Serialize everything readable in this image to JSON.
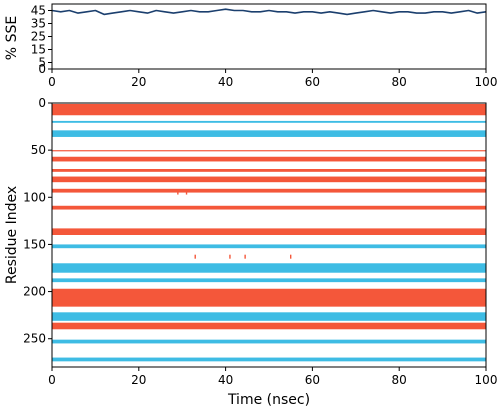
{
  "chart_data": [
    {
      "type": "line",
      "xlabel": "",
      "ylabel": "% SSE",
      "xlim": [
        0,
        100
      ],
      "ylim": [
        0,
        50
      ],
      "x_ticks": [
        "0",
        "20",
        "40",
        "60",
        "80",
        "100"
      ],
      "y_ticks": [
        "0",
        "5",
        "15",
        "25",
        "35",
        "45"
      ],
      "series": [
        {
          "color": "#1b3f6e",
          "x": [
            0,
            2,
            4,
            6,
            8,
            10,
            12,
            14,
            16,
            18,
            20,
            22,
            24,
            26,
            28,
            30,
            32,
            34,
            36,
            38,
            40,
            42,
            44,
            46,
            48,
            50,
            52,
            54,
            56,
            58,
            60,
            62,
            64,
            66,
            68,
            70,
            72,
            74,
            76,
            78,
            80,
            82,
            84,
            86,
            88,
            90,
            92,
            94,
            96,
            98,
            100
          ],
          "y": [
            45,
            44,
            45,
            43,
            44,
            45,
            42,
            43,
            44,
            45,
            44,
            43,
            45,
            44,
            43,
            44,
            45,
            44,
            44,
            45,
            46,
            45,
            45,
            44,
            44,
            45,
            44,
            44,
            43,
            44,
            44,
            43,
            44,
            43,
            42,
            43,
            44,
            45,
            44,
            43,
            44,
            44,
            43,
            43,
            44,
            44,
            43,
            44,
            45,
            43,
            44
          ]
        }
      ]
    },
    {
      "type": "heatmap",
      "xlabel": "Time (nsec)",
      "ylabel": "Residue Index",
      "xlim": [
        0,
        100
      ],
      "ylim": [
        0,
        280
      ],
      "y_inverted": true,
      "x_ticks": [
        "0",
        "20",
        "40",
        "60",
        "80",
        "100"
      ],
      "y_ticks": [
        "0",
        "50",
        "100",
        "150",
        "200",
        "250"
      ],
      "colors": {
        "helix": "#f4573a",
        "strand": "#3ebce4"
      },
      "bands": [
        {
          "type": "helix",
          "start": 1,
          "end": 13
        },
        {
          "type": "strand",
          "start": 19,
          "end": 21
        },
        {
          "type": "strand",
          "start": 29,
          "end": 36
        },
        {
          "type": "helix",
          "start": 50,
          "end": 51
        },
        {
          "type": "helix",
          "start": 57,
          "end": 62
        },
        {
          "type": "helix",
          "start": 70,
          "end": 73
        },
        {
          "type": "helix",
          "start": 78,
          "end": 84
        },
        {
          "type": "helix",
          "start": 91,
          "end": 95
        },
        {
          "type": "helix",
          "start": 109,
          "end": 113
        },
        {
          "type": "helix",
          "start": 133,
          "end": 140
        },
        {
          "type": "strand",
          "start": 150,
          "end": 154
        },
        {
          "type": "strand",
          "start": 170,
          "end": 180
        },
        {
          "type": "strand",
          "start": 186,
          "end": 190
        },
        {
          "type": "helix",
          "start": 197,
          "end": 216
        },
        {
          "type": "strand",
          "start": 222,
          "end": 231
        },
        {
          "type": "helix",
          "start": 233,
          "end": 240
        },
        {
          "type": "strand",
          "start": 251,
          "end": 255
        },
        {
          "type": "strand",
          "start": 270,
          "end": 274
        }
      ],
      "spots": [
        {
          "type": "helix",
          "time": 33,
          "residue": 163
        },
        {
          "type": "helix",
          "time": 41,
          "residue": 163
        },
        {
          "type": "helix",
          "time": 44.5,
          "residue": 163
        },
        {
          "type": "helix",
          "time": 55,
          "residue": 163
        },
        {
          "type": "helix",
          "time": 29,
          "residue": 95
        },
        {
          "type": "helix",
          "time": 31,
          "residue": 95
        }
      ]
    }
  ]
}
